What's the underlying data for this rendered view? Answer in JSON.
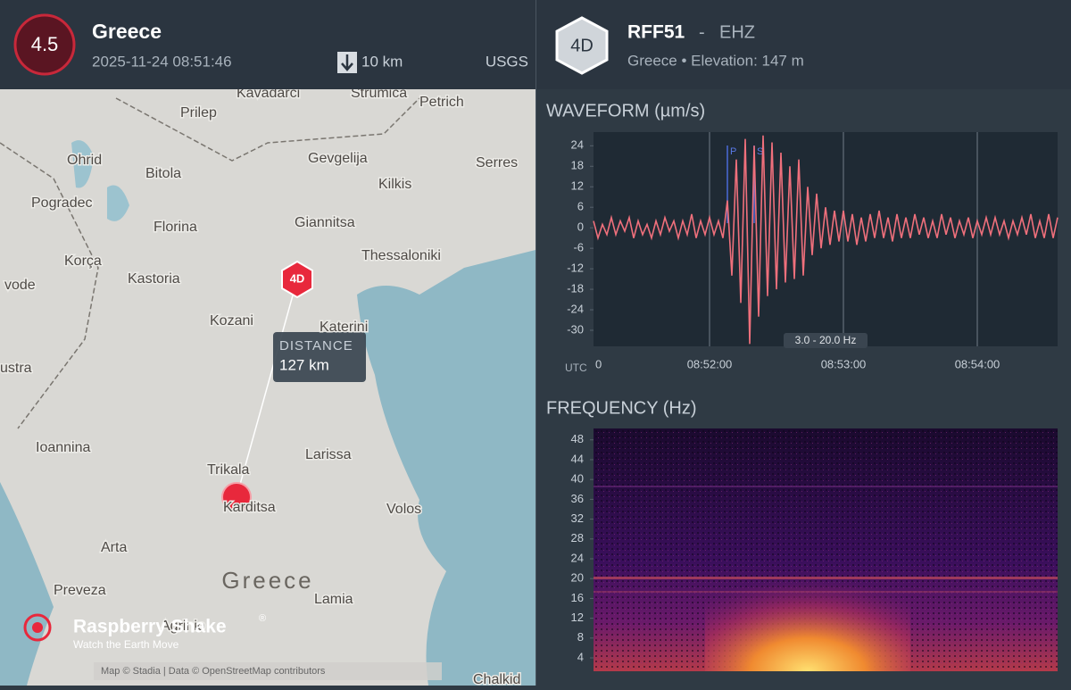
{
  "event": {
    "magnitude": "4.5",
    "region": "Greece",
    "time": "2025-11-24 08:51:46",
    "depth": "10 km",
    "source": "USGS"
  },
  "station": {
    "network": "4D",
    "code": "RFF51",
    "separator": "-",
    "channel": "EHZ",
    "info": "Greece • Elevation: 147 m"
  },
  "map": {
    "labels": [
      "Kavadarci",
      "Strumica",
      "Petrich",
      "Prilep",
      "Ohrid",
      "Bitola",
      "Gevgelija",
      "Serres",
      "Pogradec",
      "Kilkis",
      "Florina",
      "Giannitsa",
      "Thessaloniki",
      "Korça",
      "Kastoria",
      "Kozani",
      "Katerini",
      "Ioannina",
      "Larissa",
      "Trikala",
      "Karditsa",
      "Volos",
      "Arta",
      "Preveza",
      "Lamia",
      "Agrinio",
      "vode",
      "ustra",
      "Chalkid"
    ],
    "country": "Greece",
    "station_badge": "4D",
    "distance_label": "DISTANCE",
    "distance": "127 km",
    "brand": "Raspberry Shake",
    "brand_mark": "®",
    "tagline": "Watch the Earth Move",
    "attribution": "Map © Stadia | Data © OpenStreetMap contributors"
  },
  "waveform": {
    "title": "WAVEFORM (µm/s)",
    "time_zone": "UTC",
    "filter": "3.0 - 20.0 Hz",
    "phases": [
      {
        "label": "P",
        "x": 68
      },
      {
        "label": "S",
        "x": 80
      }
    ],
    "color": "#f0707c",
    "xlim": [
      8,
      216
    ],
    "xticks": [
      {
        "value": 8,
        "label": "0"
      },
      {
        "value": 60,
        "label": "08:52:00"
      },
      {
        "value": 120,
        "label": "08:53:00"
      },
      {
        "value": 180,
        "label": "08:54:00"
      }
    ],
    "ylim": [
      -34.7,
      28
    ],
    "yticks": [
      24,
      18,
      12,
      6,
      0,
      -6,
      -12,
      -18,
      -24,
      -30
    ],
    "x": [
      8,
      10,
      12,
      14,
      16,
      18,
      20,
      22,
      24,
      26,
      28,
      30,
      32,
      34,
      36,
      38,
      40,
      42,
      44,
      46,
      48,
      50,
      52,
      54,
      56,
      58,
      60,
      62,
      64,
      66,
      68,
      70,
      72,
      74,
      76,
      78,
      80,
      82,
      84,
      86,
      88,
      90,
      92,
      94,
      96,
      98,
      100,
      102,
      104,
      106,
      108,
      110,
      112,
      114,
      116,
      118,
      120,
      122,
      124,
      126,
      128,
      130,
      132,
      134,
      136,
      138,
      140,
      142,
      144,
      146,
      148,
      150,
      152,
      154,
      156,
      158,
      160,
      162,
      164,
      166,
      168,
      170,
      172,
      174,
      176,
      178,
      180,
      182,
      184,
      186,
      188,
      190,
      192,
      194,
      196,
      198,
      200,
      202,
      204,
      206,
      208,
      210,
      212,
      214,
      216
    ],
    "values": [
      2,
      -3,
      1,
      -2,
      3,
      -2,
      2,
      -1,
      3,
      -3,
      2,
      -2,
      1,
      -3,
      2,
      -2,
      3,
      -1,
      2,
      -3,
      2,
      -2,
      4,
      -3,
      2,
      -2,
      3,
      -2,
      2,
      -3,
      8,
      -14,
      20,
      -22,
      26,
      -34,
      24,
      -26,
      27,
      -20,
      25,
      -18,
      22,
      -16,
      18,
      -15,
      20,
      -14,
      12,
      -8,
      10,
      -6,
      6,
      -5,
      5,
      -4,
      5,
      -4,
      4,
      -5,
      3,
      -4,
      4,
      -3,
      5,
      -3,
      3,
      -4,
      4,
      -3,
      3,
      -3,
      4,
      -2,
      3,
      -3,
      2,
      -3,
      4,
      -2,
      3,
      -3,
      2,
      -2,
      3,
      -3,
      2,
      -2,
      3,
      -2,
      3,
      -2,
      2,
      -3,
      2,
      -2,
      3,
      -2,
      4,
      -3,
      2,
      -3,
      4,
      -3,
      3
    ]
  },
  "frequency": {
    "title": "FREQUENCY (Hz)",
    "ylim": [
      1.3,
      50.3
    ],
    "yticks": [
      48,
      44,
      40,
      36,
      32,
      28,
      24,
      20,
      16,
      12,
      8,
      4
    ]
  }
}
